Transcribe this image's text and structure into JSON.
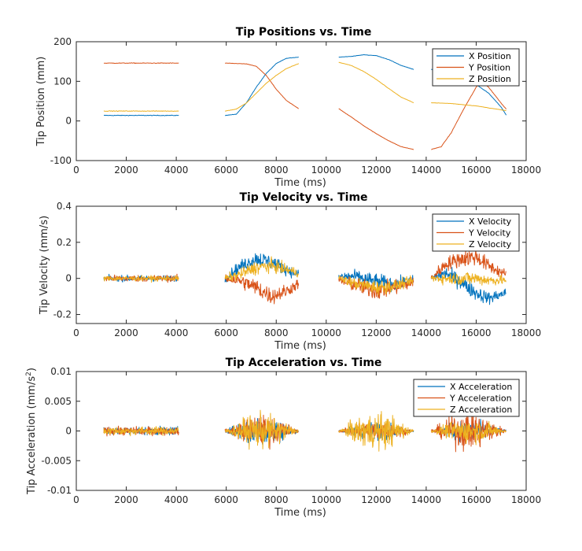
{
  "colors": {
    "x": "#0072BD",
    "y": "#D95319",
    "z": "#EDB120"
  },
  "chart_data": [
    {
      "type": "line",
      "title": "Tip Positions vs. Time",
      "xlabel": "Time (ms)",
      "ylabel": "Tip Position (mm)",
      "xlim": [
        0,
        18000
      ],
      "ylim": [
        -100,
        200
      ],
      "xticks": [
        "0",
        "2000",
        "4000",
        "6000",
        "8000",
        "10000",
        "12000",
        "14000",
        "16000",
        "18000"
      ],
      "yticks": [
        "-100",
        "0",
        "100",
        "200"
      ],
      "legend_position": "top-right",
      "segments": [
        [
          1100,
          4100
        ],
        [
          5950,
          8900
        ],
        [
          10500,
          13500
        ],
        [
          14200,
          17200
        ]
      ],
      "series": [
        {
          "name": "X Position",
          "points": [
            [
              1100,
              14
            ],
            [
              4100,
              14
            ],
            [
              5950,
              14
            ],
            [
              6400,
              17
            ],
            [
              6800,
              45
            ],
            [
              7200,
              85
            ],
            [
              7600,
              120
            ],
            [
              8000,
              145
            ],
            [
              8400,
              158
            ],
            [
              8900,
              161
            ],
            [
              10500,
              161
            ],
            [
              11000,
              163
            ],
            [
              11500,
              167
            ],
            [
              12000,
              165
            ],
            [
              12500,
              155
            ],
            [
              13000,
              140
            ],
            [
              13500,
              130
            ],
            [
              14200,
              130
            ],
            [
              15000,
              120
            ],
            [
              15600,
              105
            ],
            [
              16000,
              92
            ],
            [
              16500,
              70
            ],
            [
              17000,
              35
            ],
            [
              17200,
              15
            ]
          ]
        },
        {
          "name": "Y Position",
          "points": [
            [
              1100,
              146
            ],
            [
              4100,
              146
            ],
            [
              5950,
              146
            ],
            [
              6800,
              144
            ],
            [
              7200,
              138
            ],
            [
              7600,
              115
            ],
            [
              8000,
              80
            ],
            [
              8400,
              52
            ],
            [
              8900,
              31
            ],
            [
              10500,
              31
            ],
            [
              11000,
              10
            ],
            [
              11500,
              -12
            ],
            [
              12000,
              -32
            ],
            [
              12500,
              -50
            ],
            [
              13000,
              -65
            ],
            [
              13500,
              -72
            ],
            [
              14200,
              -72
            ],
            [
              14600,
              -65
            ],
            [
              15000,
              -30
            ],
            [
              15500,
              30
            ],
            [
              16000,
              85
            ],
            [
              16200,
              100
            ],
            [
              16500,
              85
            ],
            [
              17000,
              45
            ],
            [
              17200,
              30
            ]
          ]
        },
        {
          "name": "Z Position",
          "points": [
            [
              1100,
              25
            ],
            [
              4100,
              25
            ],
            [
              5950,
              25
            ],
            [
              6400,
              30
            ],
            [
              6800,
              45
            ],
            [
              7200,
              70
            ],
            [
              7600,
              95
            ],
            [
              8000,
              115
            ],
            [
              8400,
              132
            ],
            [
              8900,
              145
            ],
            [
              10500,
              148
            ],
            [
              11000,
              140
            ],
            [
              11500,
              125
            ],
            [
              12000,
              105
            ],
            [
              12500,
              82
            ],
            [
              13000,
              60
            ],
            [
              13500,
              46
            ],
            [
              14200,
              46
            ],
            [
              15000,
              44
            ],
            [
              16000,
              38
            ],
            [
              16500,
              33
            ],
            [
              17200,
              26
            ]
          ]
        }
      ]
    },
    {
      "type": "line",
      "title": "Tip Velocity vs. Time",
      "xlabel": "Time (ms)",
      "ylabel": "Tip Velocity (mm/s)",
      "xlim": [
        0,
        18000
      ],
      "ylim": [
        -0.25,
        0.4
      ],
      "xticks": [
        "0",
        "2000",
        "4000",
        "6000",
        "8000",
        "10000",
        "12000",
        "14000",
        "16000",
        "18000"
      ],
      "yticks": [
        "-0.2",
        "0",
        "0.2",
        "0.4"
      ],
      "legend_position": "top-right",
      "segments": [
        [
          1100,
          4100
        ],
        [
          5950,
          8900
        ],
        [
          10500,
          13500
        ],
        [
          14200,
          17200
        ]
      ],
      "series": [
        {
          "name": "X Velocity",
          "noise": 0.045,
          "trend": [
            [
              1100,
              0
            ],
            [
              4100,
              0
            ],
            [
              5950,
              0
            ],
            [
              6500,
              0.06
            ],
            [
              7200,
              0.11
            ],
            [
              7800,
              0.09
            ],
            [
              8400,
              0.05
            ],
            [
              8900,
              0.02
            ],
            [
              10500,
              0.01
            ],
            [
              11200,
              0.01
            ],
            [
              12000,
              -0.02
            ],
            [
              12800,
              -0.03
            ],
            [
              13500,
              -0.01
            ],
            [
              14200,
              0
            ],
            [
              14800,
              0.03
            ],
            [
              15400,
              -0.02
            ],
            [
              16000,
              -0.08
            ],
            [
              16500,
              -0.11
            ],
            [
              17200,
              -0.08
            ]
          ]
        },
        {
          "name": "Y Velocity",
          "noise": 0.05,
          "trend": [
            [
              1100,
              0
            ],
            [
              4100,
              0
            ],
            [
              5950,
              0
            ],
            [
              6500,
              -0.01
            ],
            [
              7200,
              -0.05
            ],
            [
              7800,
              -0.1
            ],
            [
              8400,
              -0.07
            ],
            [
              8900,
              -0.03
            ],
            [
              10500,
              -0.01
            ],
            [
              11200,
              -0.04
            ],
            [
              12000,
              -0.07
            ],
            [
              12800,
              -0.05
            ],
            [
              13500,
              -0.02
            ],
            [
              14200,
              0
            ],
            [
              14800,
              0.08
            ],
            [
              15400,
              0.11
            ],
            [
              16000,
              0.12
            ],
            [
              16500,
              0.07
            ],
            [
              17200,
              0.02
            ]
          ]
        },
        {
          "name": "Z Velocity",
          "noise": 0.04,
          "trend": [
            [
              1100,
              0
            ],
            [
              4100,
              0
            ],
            [
              5950,
              0
            ],
            [
              6500,
              0.02
            ],
            [
              7200,
              0.06
            ],
            [
              7800,
              0.07
            ],
            [
              8400,
              0.05
            ],
            [
              8900,
              0.03
            ],
            [
              10500,
              0
            ],
            [
              11200,
              -0.03
            ],
            [
              12000,
              -0.05
            ],
            [
              12800,
              -0.04
            ],
            [
              13500,
              -0.01
            ],
            [
              14200,
              0
            ],
            [
              15000,
              0
            ],
            [
              16000,
              0
            ],
            [
              16500,
              -0.01
            ],
            [
              17200,
              -0.01
            ]
          ]
        }
      ]
    },
    {
      "type": "line",
      "title": "Tip Acceleration vs. Time",
      "xlabel": "Time (ms)",
      "ylabel": "Tip Acceleration (mm/s",
      "ylabel_sup": "2",
      "ylabel_close": ")",
      "xlim": [
        0,
        18000
      ],
      "ylim": [
        -0.01,
        0.01
      ],
      "xticks": [
        "0",
        "2000",
        "4000",
        "6000",
        "8000",
        "10000",
        "12000",
        "14000",
        "16000",
        "18000"
      ],
      "yticks": [
        "-0.01",
        "-0.005",
        "0",
        "0.005",
        "0.01"
      ],
      "legend_position": "top-right",
      "segments": [
        [
          1100,
          4100
        ],
        [
          5950,
          8900
        ],
        [
          10500,
          13500
        ],
        [
          14200,
          17200
        ]
      ],
      "series": [
        {
          "name": "X Acceleration",
          "peaks": [
            0.0012,
            0.0045,
            0.0025,
            0.003
          ]
        },
        {
          "name": "Y Acceleration",
          "peaks": [
            0.0012,
            0.0045,
            0.003,
            0.0055
          ]
        },
        {
          "name": "Z Acceleration",
          "peaks": [
            0.0012,
            0.005,
            0.0055,
            0.0035
          ]
        }
      ]
    }
  ]
}
